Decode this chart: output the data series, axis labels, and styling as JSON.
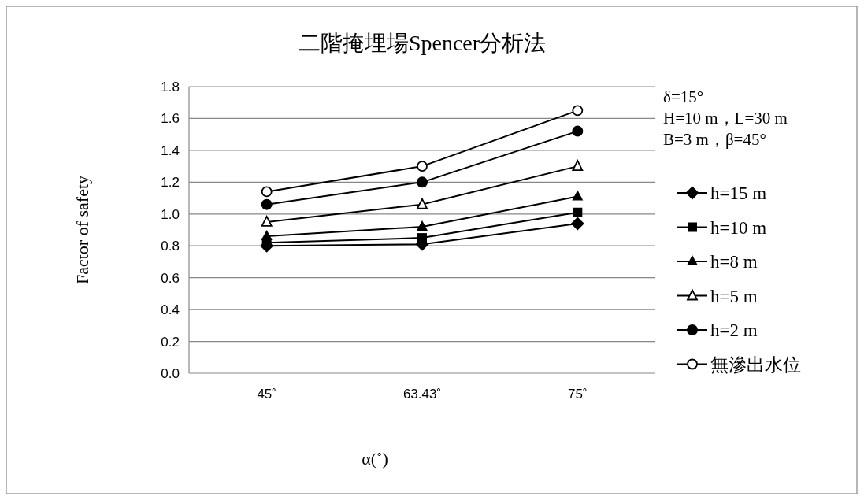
{
  "chart_data": {
    "type": "line",
    "title": "二階掩埋場Spencer分析法",
    "xlabel": "α(˚)",
    "ylabel": "Factor of safety",
    "categories": [
      "45˚",
      "63.43˚",
      "75˚"
    ],
    "series": [
      {
        "name": "h=15 m",
        "color": "#000000",
        "marker": "diamond",
        "values": [
          0.8,
          0.81,
          0.94
        ]
      },
      {
        "name": "h=10 m",
        "color": "#000000",
        "marker": "square",
        "values": [
          0.82,
          0.85,
          1.01
        ]
      },
      {
        "name": "h=8 m",
        "color": "#000000",
        "marker": "triangle",
        "values": [
          0.86,
          0.92,
          1.11
        ]
      },
      {
        "name": "h=5 m",
        "color": "#000000",
        "marker": "triangle-open",
        "values": [
          0.95,
          1.06,
          1.3
        ]
      },
      {
        "name": "h=2 m",
        "color": "#000000",
        "marker": "circle",
        "values": [
          1.06,
          1.2,
          1.52
        ]
      },
      {
        "name": "無滲出水位",
        "color": "#000000",
        "marker": "circle-open",
        "values": [
          1.14,
          1.3,
          1.65
        ]
      }
    ],
    "ylim": [
      0,
      1.8
    ],
    "yticks": [
      {
        "value": 0,
        "label": "0.0"
      },
      {
        "value": 0.2,
        "label": "0.2"
      },
      {
        "value": 0.4,
        "label": "0.4"
      },
      {
        "value": 0.6,
        "label": "0.6"
      },
      {
        "value": 0.8,
        "label": "0.8"
      },
      {
        "value": 1,
        "label": "1.0"
      },
      {
        "value": 1.2,
        "label": "1.2"
      },
      {
        "value": 1.4,
        "label": "1.4"
      },
      {
        "value": 1.6,
        "label": "1.6"
      },
      {
        "value": 1.8,
        "label": "1.8"
      }
    ],
    "grid": "y",
    "legend": "right",
    "line_style": "solid",
    "annotations": [
      "δ=15°",
      "H=10 m，L=30 m",
      "B=3 m，β=45°"
    ]
  }
}
